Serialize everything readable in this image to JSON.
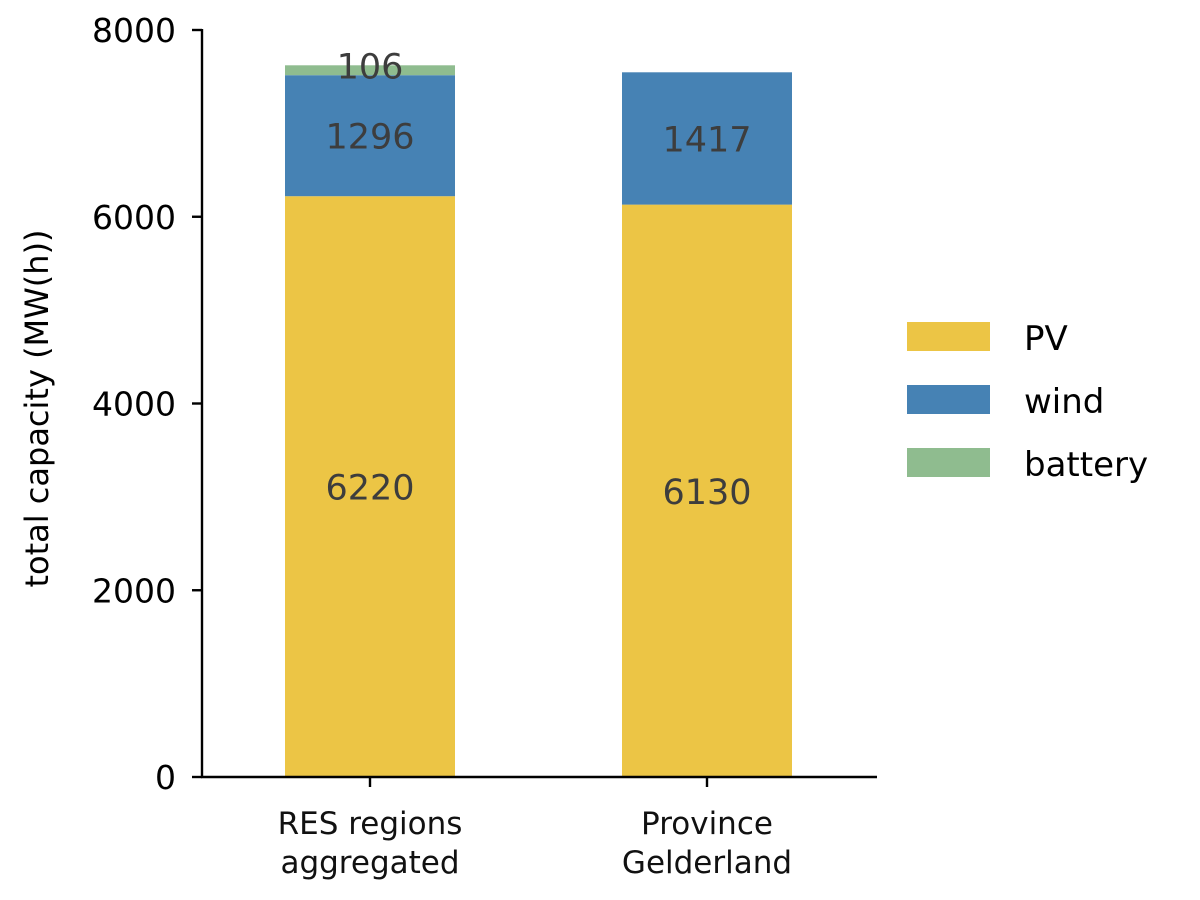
{
  "chart_data": {
    "type": "bar",
    "stacked": true,
    "categories": [
      [
        "RES regions",
        "aggregated"
      ],
      [
        "Province",
        "Gelderland"
      ]
    ],
    "series": [
      {
        "name": "PV",
        "color": "#ECC545",
        "values": [
          6220,
          6130
        ]
      },
      {
        "name": "wind",
        "color": "#4682B4",
        "values": [
          1296,
          1417
        ]
      },
      {
        "name": "battery",
        "color": "#8FBC8F",
        "values": [
          106,
          0
        ]
      }
    ],
    "data_labels": [
      [
        "6220",
        "6130"
      ],
      [
        "1296",
        "1417"
      ],
      [
        "106",
        ""
      ]
    ],
    "title": "",
    "xlabel": "",
    "ylabel": "total capacity (MW(h))",
    "ylim": [
      0,
      8000
    ],
    "yticks": [
      0,
      2000,
      4000,
      6000,
      8000
    ],
    "grid": false,
    "legend": "right"
  }
}
